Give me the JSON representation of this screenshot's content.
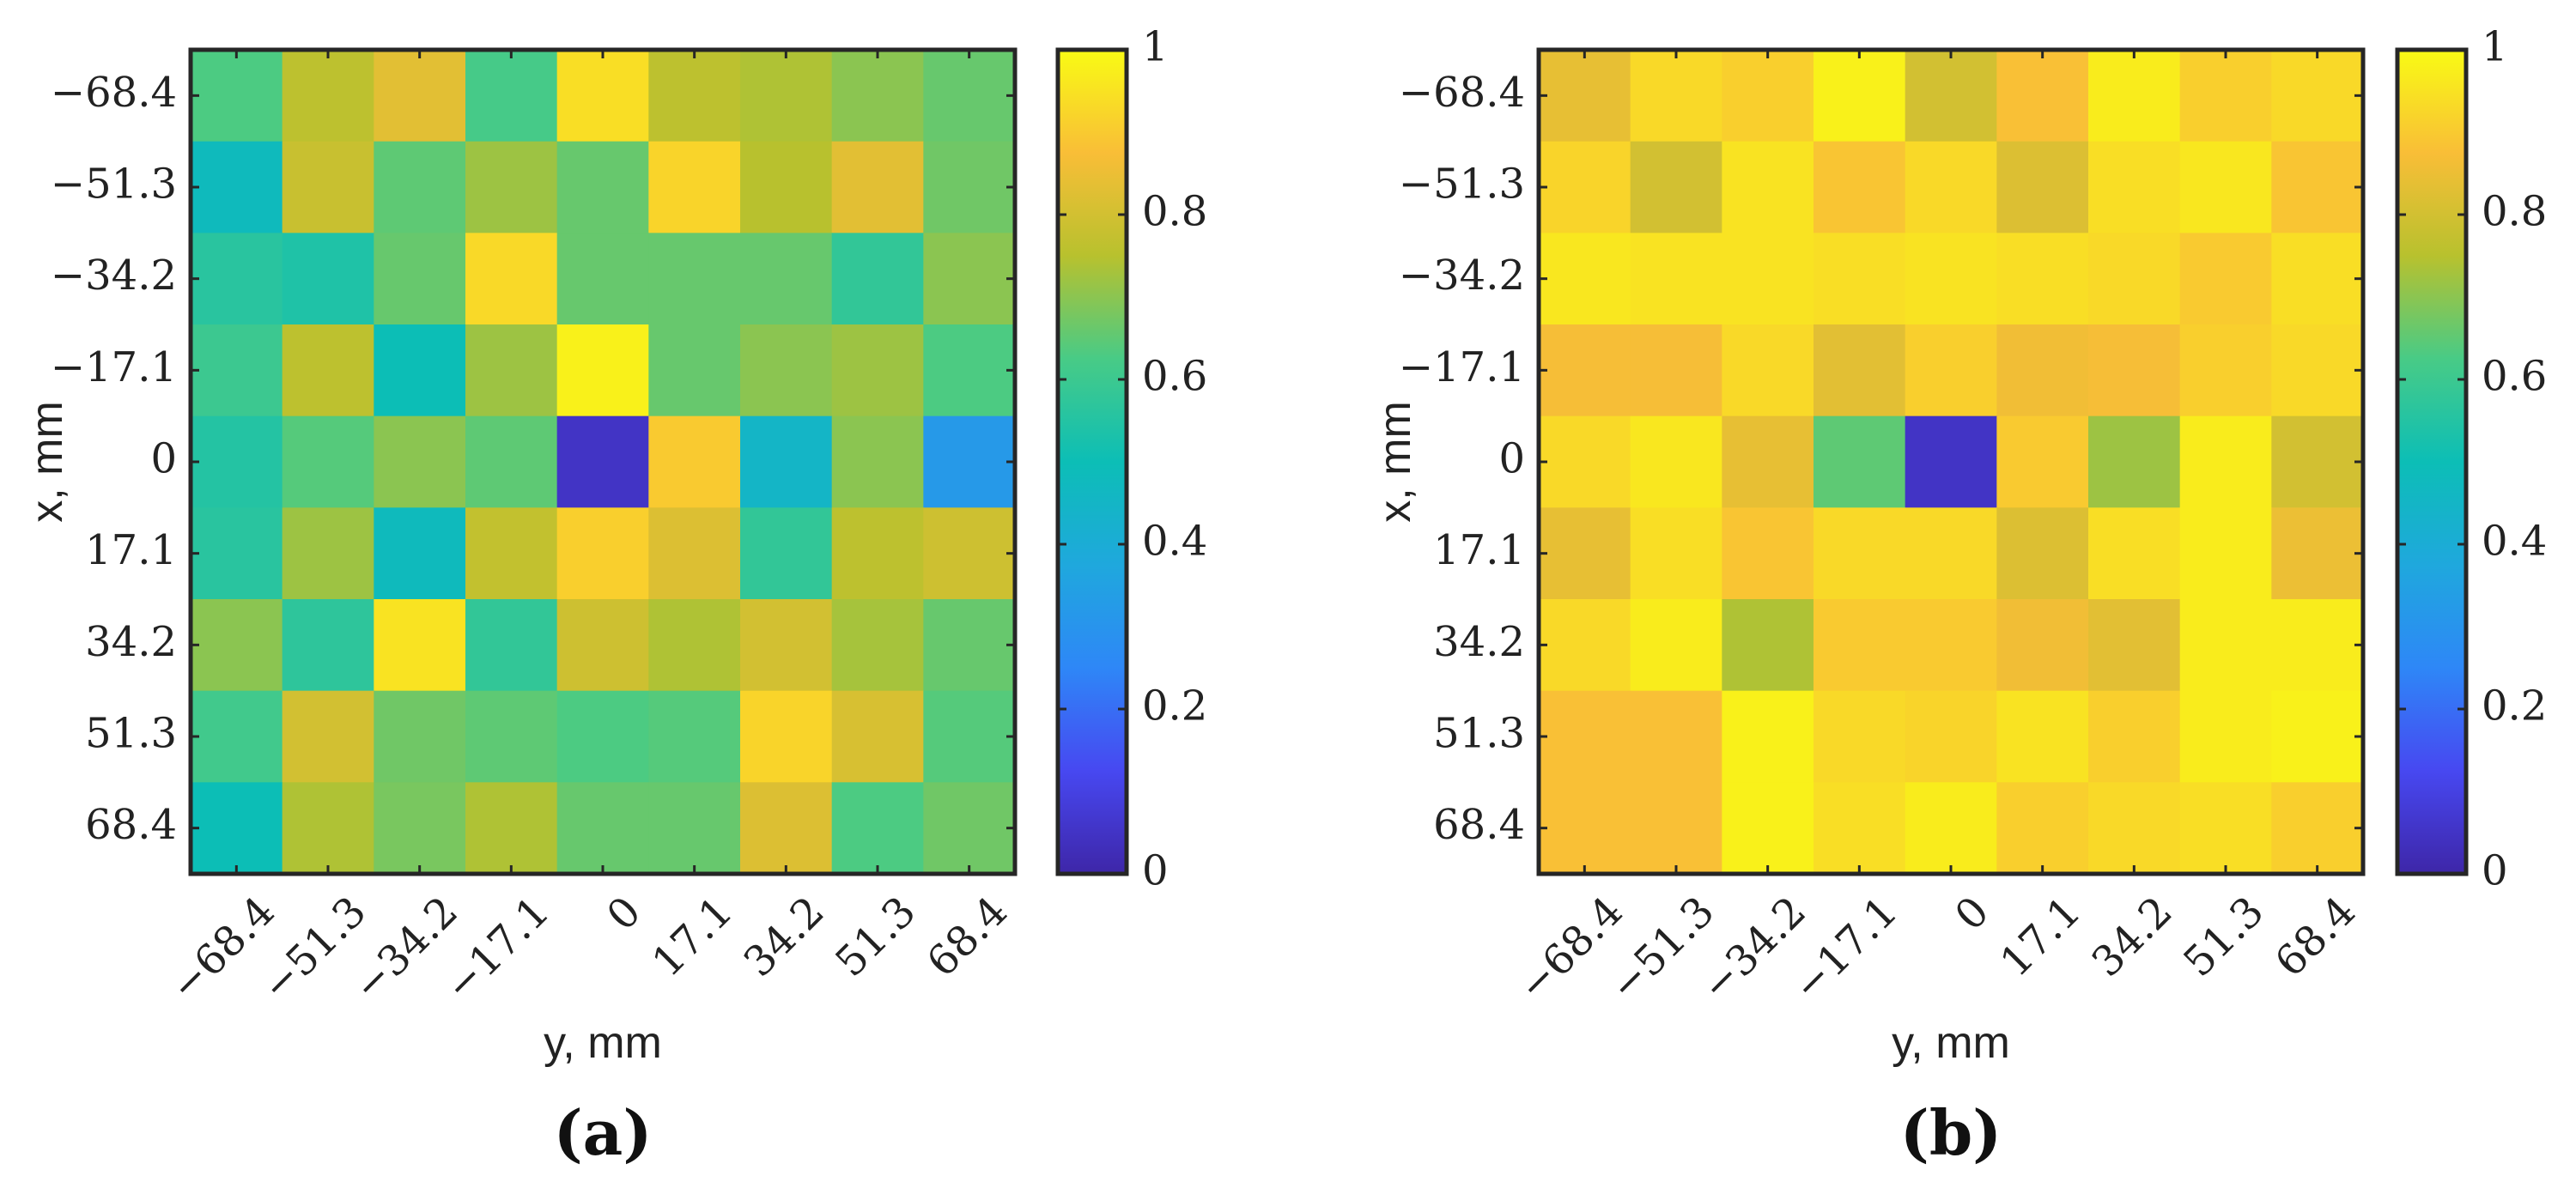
{
  "chart_data": [
    {
      "type": "heatmap",
      "panel_label": "(a)",
      "xlabel": "y, mm",
      "ylabel": "x, mm",
      "x_ticks": [
        "−68.4",
        "−51.3",
        "−34.2",
        "−17.1",
        "0",
        "17.1",
        "34.2",
        "51.3",
        "68.4"
      ],
      "y_ticks": [
        "−68.4",
        "−51.3",
        "−34.2",
        "−17.1",
        "0",
        "17.1",
        "34.2",
        "51.3",
        "68.4"
      ],
      "colorbar": {
        "min": 0,
        "max": 1,
        "ticks": [
          "0",
          "0.2",
          "0.4",
          "0.6",
          "0.8",
          "1"
        ]
      },
      "values": [
        [
          0.63,
          0.76,
          0.83,
          0.62,
          0.94,
          0.76,
          0.74,
          0.7,
          0.66
        ],
        [
          0.48,
          0.78,
          0.65,
          0.72,
          0.66,
          0.92,
          0.75,
          0.83,
          0.67
        ],
        [
          0.56,
          0.54,
          0.66,
          0.93,
          0.66,
          0.66,
          0.66,
          0.58,
          0.7
        ],
        [
          0.6,
          0.76,
          0.5,
          0.72,
          0.98,
          0.66,
          0.7,
          0.72,
          0.63
        ],
        [
          0.55,
          0.64,
          0.7,
          0.65,
          0.05,
          0.9,
          0.45,
          0.7,
          0.32
        ],
        [
          0.56,
          0.72,
          0.48,
          0.77,
          0.91,
          0.82,
          0.58,
          0.76,
          0.79
        ],
        [
          0.7,
          0.57,
          0.95,
          0.58,
          0.79,
          0.74,
          0.8,
          0.73,
          0.66
        ],
        [
          0.61,
          0.8,
          0.67,
          0.65,
          0.63,
          0.64,
          0.92,
          0.81,
          0.64
        ],
        [
          0.5,
          0.74,
          0.68,
          0.74,
          0.66,
          0.66,
          0.82,
          0.63,
          0.67
        ]
      ]
    },
    {
      "type": "heatmap",
      "panel_label": "(b)",
      "xlabel": "y, mm",
      "ylabel": "x, mm",
      "x_ticks": [
        "−68.4",
        "−51.3",
        "−34.2",
        "−17.1",
        "0",
        "17.1",
        "34.2",
        "51.3",
        "68.4"
      ],
      "y_ticks": [
        "−68.4",
        "−51.3",
        "−34.2",
        "−17.1",
        "0",
        "17.1",
        "34.2",
        "51.3",
        "68.4"
      ],
      "colorbar": {
        "min": 0,
        "max": 1,
        "ticks": [
          "0",
          "0.2",
          "0.4",
          "0.6",
          "0.8",
          "1"
        ]
      },
      "values": [
        [
          0.84,
          0.93,
          0.91,
          0.98,
          0.8,
          0.88,
          0.97,
          0.91,
          0.93
        ],
        [
          0.92,
          0.8,
          0.95,
          0.89,
          0.93,
          0.82,
          0.94,
          0.96,
          0.89
        ],
        [
          0.96,
          0.95,
          0.95,
          0.94,
          0.95,
          0.94,
          0.93,
          0.9,
          0.94
        ],
        [
          0.87,
          0.87,
          0.93,
          0.83,
          0.91,
          0.86,
          0.87,
          0.91,
          0.93
        ],
        [
          0.93,
          0.96,
          0.84,
          0.65,
          0.05,
          0.9,
          0.72,
          0.97,
          0.8
        ],
        [
          0.84,
          0.94,
          0.89,
          0.93,
          0.93,
          0.82,
          0.94,
          0.97,
          0.85
        ],
        [
          0.93,
          0.97,
          0.74,
          0.9,
          0.9,
          0.86,
          0.83,
          0.97,
          0.97
        ],
        [
          0.88,
          0.88,
          0.98,
          0.93,
          0.92,
          0.95,
          0.91,
          0.97,
          0.98
        ],
        [
          0.88,
          0.88,
          0.98,
          0.94,
          0.97,
          0.91,
          0.93,
          0.94,
          0.91
        ]
      ]
    }
  ]
}
